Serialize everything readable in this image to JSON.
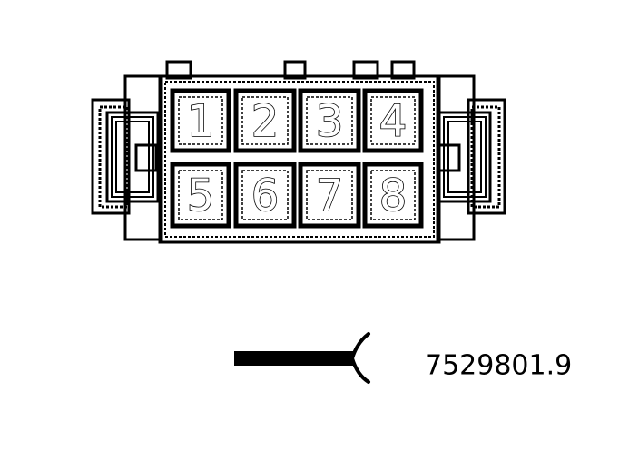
{
  "connector": {
    "pins": [
      "1",
      "2",
      "3",
      "4",
      "5",
      "6",
      "7",
      "8"
    ]
  },
  "part_number": "7529801.9",
  "colors": {
    "line": "#000000",
    "background": "#ffffff"
  }
}
